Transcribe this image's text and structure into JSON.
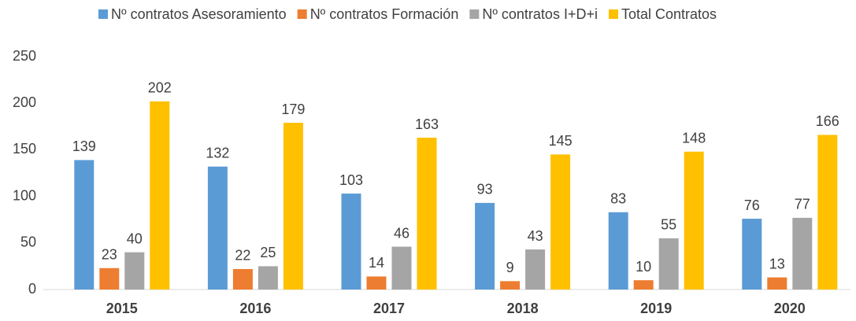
{
  "chart_data": {
    "type": "bar",
    "categories": [
      "2015",
      "2016",
      "2017",
      "2018",
      "2019",
      "2020"
    ],
    "series": [
      {
        "name": "Nº contratos Asesoramiento",
        "color": "#5b9bd5",
        "values": [
          139,
          132,
          103,
          93,
          83,
          76
        ]
      },
      {
        "name": "Nº contratos Formación",
        "color": "#ed7d31",
        "values": [
          23,
          22,
          14,
          9,
          10,
          13
        ]
      },
      {
        "name": "Nº contratos I+D+i",
        "color": "#a5a5a5",
        "values": [
          40,
          25,
          46,
          43,
          55,
          77
        ]
      },
      {
        "name": "Total Contratos",
        "color": "#ffc000",
        "values": [
          202,
          179,
          163,
          145,
          148,
          166
        ]
      }
    ],
    "ylim": [
      0,
      250
    ],
    "yticks": [
      0,
      50,
      100,
      150,
      200,
      250
    ],
    "grid": false,
    "legend": "top"
  }
}
